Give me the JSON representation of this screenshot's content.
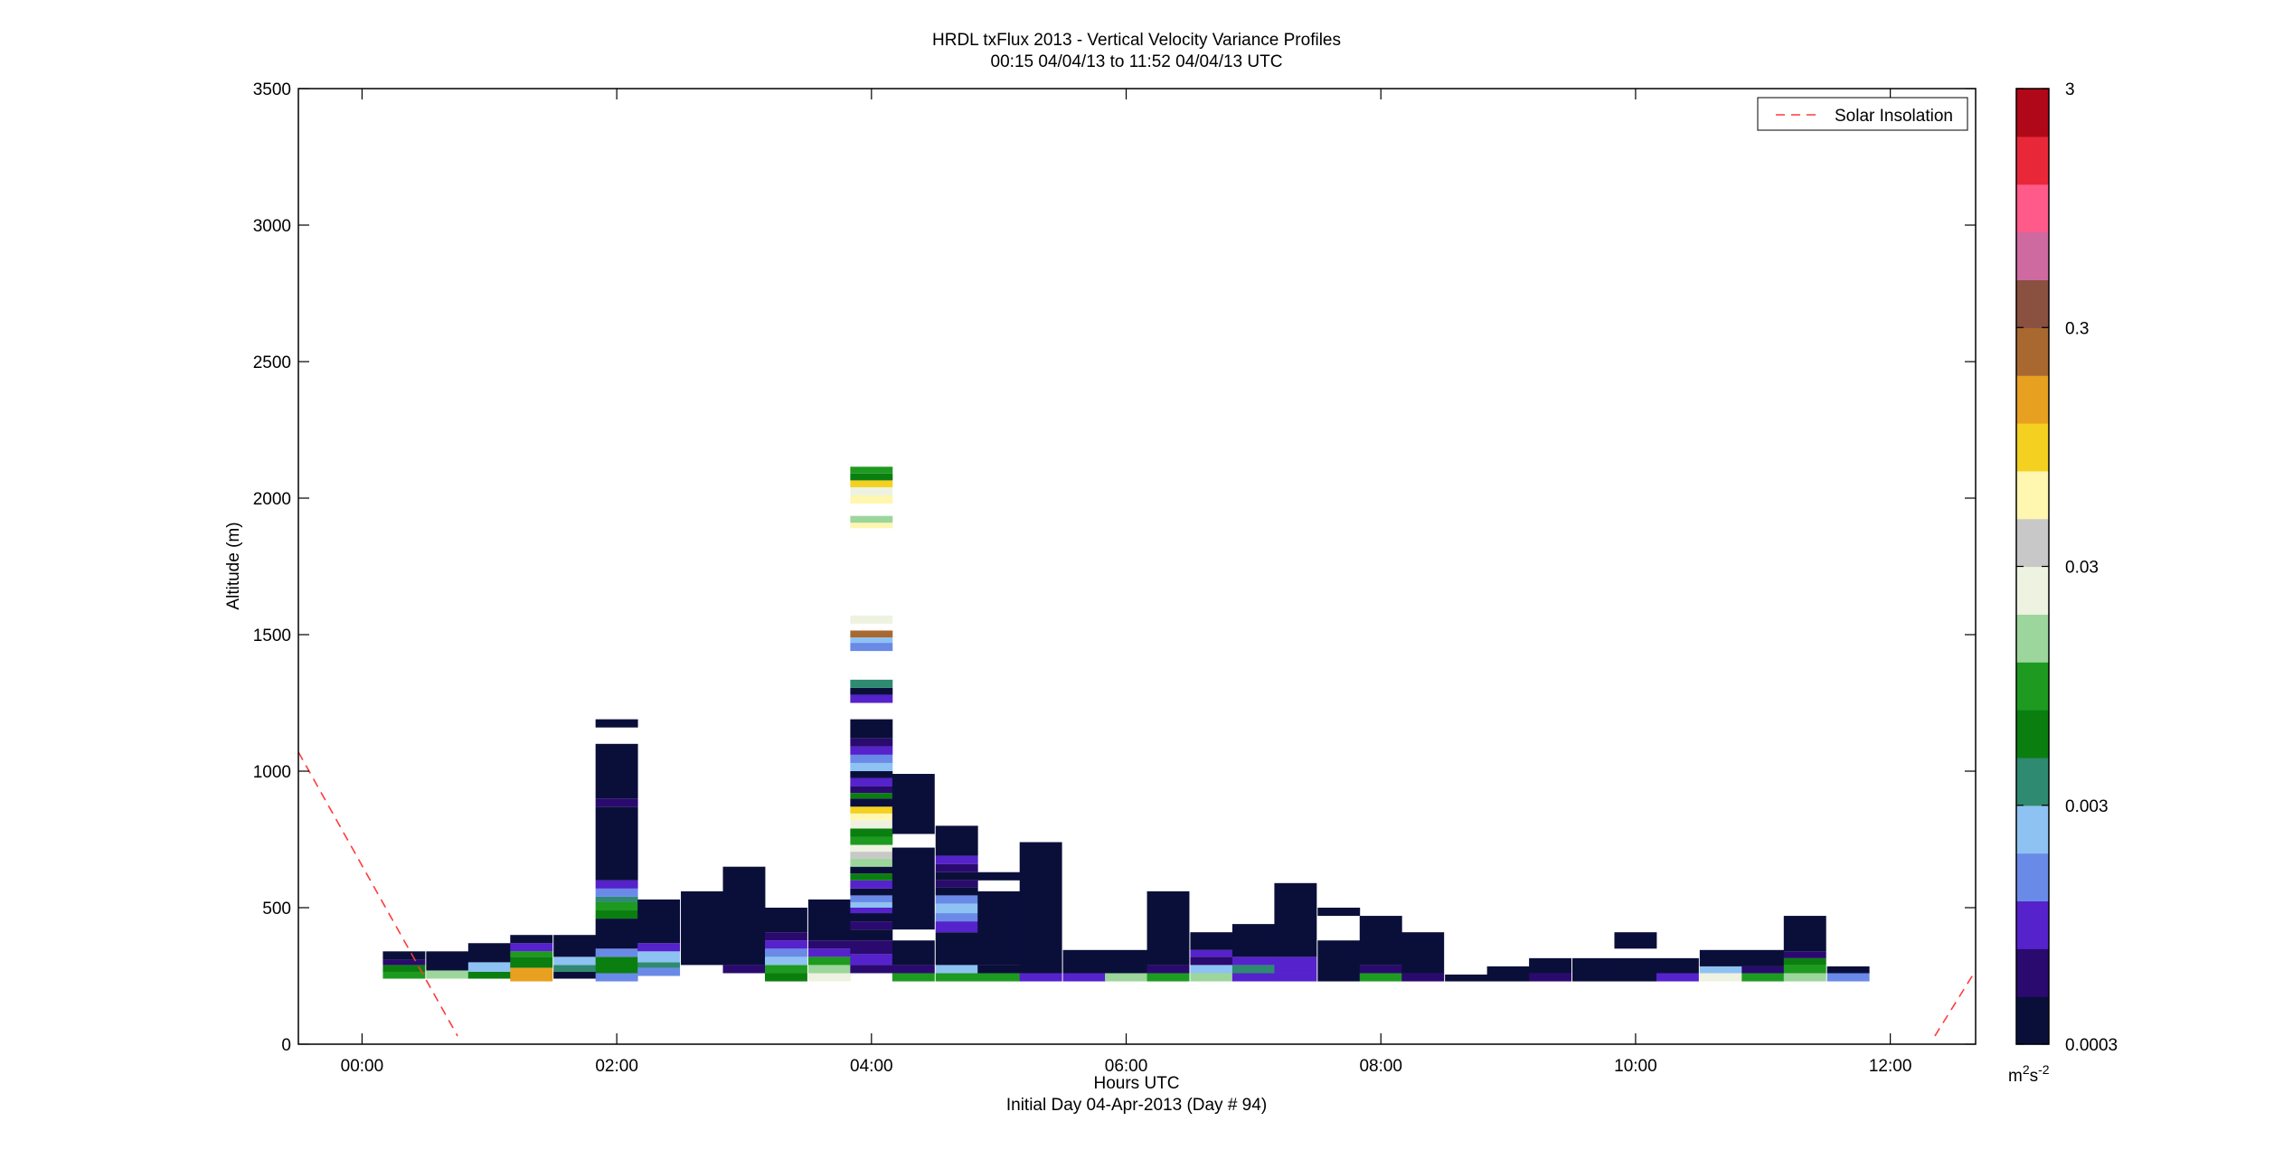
{
  "chart_data": {
    "type": "heatmap",
    "title": "HRDL txFlux 2013 - Vertical Velocity Variance Profiles",
    "subtitle": "00:15 04/04/13 to 11:52 04/04/13  UTC",
    "xlabel": "Hours UTC",
    "xlabel2": "Initial Day 04-Apr-2013 (Day # 94)",
    "ylabel": "Altitude (m)",
    "colorbar_unit_base": "m",
    "colorbar_unit_exp1": "2",
    "colorbar_unit_mid": "s",
    "colorbar_unit_exp2": "-2",
    "legend_label": "Solar Insolation",
    "legend_position": "top-right",
    "xlim": [
      -0.5,
      12.67
    ],
    "ylim": [
      0,
      3500
    ],
    "x_ticks": [
      0,
      2,
      4,
      6,
      8,
      10,
      12
    ],
    "x_tick_labels": [
      "00:00",
      "02:00",
      "04:00",
      "06:00",
      "08:00",
      "10:00",
      "12:00"
    ],
    "y_ticks": [
      0,
      500,
      1000,
      1500,
      2000,
      2500,
      3000,
      3500
    ],
    "y_tick_labels": [
      "0",
      "500",
      "1000",
      "1500",
      "2000",
      "2500",
      "3000",
      "3500"
    ],
    "colorbar_scale": "log",
    "colorbar_range": [
      0.0003,
      3
    ],
    "colorbar_ticks": [
      0.0003,
      0.003,
      0.03,
      0.3,
      3
    ],
    "colorbar_tick_labels": [
      "0.0003",
      "0.003",
      "0.03",
      "0.3",
      "3"
    ],
    "colorbar_colors": [
      "#0a0f3a",
      "#2a0a6e",
      "#5522cc",
      "#6a8ae8",
      "#8ec2f2",
      "#2e8a70",
      "#0b7e10",
      "#1e9a20",
      "#9cd69c",
      "#eef2e0",
      "#c8c8c8",
      "#fff6b0",
      "#f4d020",
      "#e8a020",
      "#a86830",
      "#8a5040",
      "#ce6aa0",
      "#ff5a8a",
      "#e82838",
      "#b00818"
    ],
    "bin_width_hours": 0.333,
    "gate_height_m": 31,
    "columns": [
      {
        "t": 0.33,
        "top": 340,
        "segs": [
          [
            240,
            265,
            "#1e9a20"
          ],
          [
            265,
            290,
            "#0b7e10"
          ],
          [
            290,
            310,
            "#2a0a6e"
          ],
          [
            310,
            340,
            "#0a0f3a"
          ]
        ]
      },
      {
        "t": 0.67,
        "top": 340,
        "segs": [
          [
            240,
            270,
            "#9cd69c"
          ],
          [
            270,
            340,
            "#0a0f3a"
          ]
        ]
      },
      {
        "t": 1.0,
        "top": 370,
        "segs": [
          [
            240,
            265,
            "#0b7e10"
          ],
          [
            265,
            300,
            "#8ec2f2"
          ],
          [
            300,
            370,
            "#0a0f3a"
          ]
        ]
      },
      {
        "t": 1.33,
        "top": 400,
        "segs": [
          [
            230,
            280,
            "#e8a020"
          ],
          [
            280,
            320,
            "#0b7e10"
          ],
          [
            320,
            340,
            "#1e9a20"
          ],
          [
            340,
            370,
            "#5522cc"
          ],
          [
            370,
            400,
            "#0a0f3a"
          ]
        ]
      },
      {
        "t": 1.67,
        "top": 400,
        "segs": [
          [
            240,
            265,
            "#0a0f3a"
          ],
          [
            265,
            290,
            "#2e8a70"
          ],
          [
            290,
            320,
            "#8ec2f2"
          ],
          [
            320,
            400,
            "#0a0f3a"
          ]
        ]
      },
      {
        "t": 2.0,
        "top": 1100,
        "segs": [
          [
            230,
            260,
            "#6a8ae8"
          ],
          [
            260,
            320,
            "#0b7e10"
          ],
          [
            320,
            350,
            "#6a8ae8"
          ],
          [
            350,
            460,
            "#0a0f3a"
          ],
          [
            460,
            490,
            "#0b7e10"
          ],
          [
            490,
            520,
            "#1e9a20"
          ],
          [
            520,
            540,
            "#2e8a70"
          ],
          [
            540,
            570,
            "#6a8ae8"
          ],
          [
            570,
            600,
            "#5522cc"
          ],
          [
            600,
            870,
            "#0a0f3a"
          ],
          [
            870,
            900,
            "#2a0a6e"
          ],
          [
            900,
            1100,
            "#0a0f3a"
          ],
          [
            1160,
            1190,
            "#0a0f3a"
          ]
        ]
      },
      {
        "t": 2.33,
        "top": 530,
        "segs": [
          [
            250,
            280,
            "#6a8ae8"
          ],
          [
            280,
            300,
            "#2e8a70"
          ],
          [
            300,
            340,
            "#8ec2f2"
          ],
          [
            340,
            370,
            "#5522cc"
          ],
          [
            370,
            530,
            "#0a0f3a"
          ]
        ]
      },
      {
        "t": 2.67,
        "top": 560,
        "segs": [
          [
            290,
            560,
            "#0a0f3a"
          ]
        ]
      },
      {
        "t": 3.0,
        "top": 650,
        "segs": [
          [
            260,
            290,
            "#2a0a6e"
          ],
          [
            290,
            650,
            "#0a0f3a"
          ]
        ]
      },
      {
        "t": 3.33,
        "top": 500,
        "segs": [
          [
            230,
            260,
            "#0b7e10"
          ],
          [
            260,
            290,
            "#1e9a20"
          ],
          [
            290,
            320,
            "#8ec2f2"
          ],
          [
            320,
            350,
            "#6a8ae8"
          ],
          [
            350,
            380,
            "#5522cc"
          ],
          [
            380,
            410,
            "#2a0a6e"
          ],
          [
            410,
            500,
            "#0a0f3a"
          ]
        ]
      },
      {
        "t": 3.67,
        "top": 530,
        "segs": [
          [
            230,
            260,
            "#eef2e0"
          ],
          [
            260,
            290,
            "#9cd69c"
          ],
          [
            290,
            320,
            "#1e9a20"
          ],
          [
            320,
            350,
            "#5522cc"
          ],
          [
            350,
            380,
            "#2a0a6e"
          ],
          [
            380,
            530,
            "#0a0f3a"
          ]
        ]
      },
      {
        "t": 4.0,
        "top": 1190,
        "segs": [
          [
            260,
            290,
            "#2a0a6e"
          ],
          [
            290,
            330,
            "#5522cc"
          ],
          [
            330,
            380,
            "#2a0a6e"
          ],
          [
            380,
            420,
            "#0a0f3a"
          ],
          [
            420,
            450,
            "#2a0a6e"
          ],
          [
            450,
            480,
            "#0a0f3a"
          ],
          [
            480,
            500,
            "#5522cc"
          ],
          [
            500,
            520,
            "#8ec2f2"
          ],
          [
            520,
            545,
            "#6a8ae8"
          ],
          [
            545,
            570,
            "#0a0f3a"
          ],
          [
            570,
            600,
            "#5522cc"
          ],
          [
            600,
            625,
            "#0b7e10"
          ],
          [
            625,
            650,
            "#0a0f3a"
          ],
          [
            650,
            680,
            "#9cd69c"
          ],
          [
            680,
            705,
            "#c8c8c8"
          ],
          [
            705,
            730,
            "#eef2e0"
          ],
          [
            730,
            760,
            "#1e9a20"
          ],
          [
            760,
            790,
            "#0b7e10"
          ],
          [
            790,
            820,
            "#eef2e0"
          ],
          [
            820,
            845,
            "#fff6b0"
          ],
          [
            845,
            870,
            "#f4d020"
          ],
          [
            870,
            900,
            "#0a0f3a"
          ],
          [
            900,
            920,
            "#0b7e10"
          ],
          [
            920,
            945,
            "#2a0a6e"
          ],
          [
            945,
            975,
            "#5522cc"
          ],
          [
            975,
            1000,
            "#0a0f3a"
          ],
          [
            1000,
            1030,
            "#8ec2f2"
          ],
          [
            1030,
            1060,
            "#6a8ae8"
          ],
          [
            1060,
            1090,
            "#5522cc"
          ],
          [
            1090,
            1120,
            "#2a0a6e"
          ],
          [
            1120,
            1190,
            "#0a0f3a"
          ],
          [
            1250,
            1280,
            "#5522cc"
          ],
          [
            1280,
            1305,
            "#0a0f3a"
          ],
          [
            1305,
            1335,
            "#2e8a70"
          ],
          [
            1440,
            1470,
            "#6a8ae8"
          ],
          [
            1470,
            1490,
            "#8ec2f2"
          ],
          [
            1490,
            1515,
            "#a86830"
          ],
          [
            1540,
            1570,
            "#eef2e0"
          ],
          [
            1890,
            1910,
            "#fff6b0"
          ],
          [
            1910,
            1935,
            "#9cd69c"
          ],
          [
            1980,
            2010,
            "#fff6b0"
          ],
          [
            2010,
            2040,
            "#eef2e0"
          ],
          [
            2040,
            2065,
            "#f4d020"
          ],
          [
            2065,
            2090,
            "#0b7e10"
          ],
          [
            2090,
            2115,
            "#1e9a20"
          ]
        ]
      },
      {
        "t": 4.33,
        "top": 990,
        "segs": [
          [
            230,
            260,
            "#1e9a20"
          ],
          [
            260,
            290,
            "#2a0a6e"
          ],
          [
            290,
            380,
            "#0a0f3a"
          ],
          [
            420,
            720,
            "#0a0f3a"
          ],
          [
            770,
            990,
            "#0a0f3a"
          ]
        ]
      },
      {
        "t": 4.67,
        "top": 800,
        "segs": [
          [
            230,
            260,
            "#1e9a20"
          ],
          [
            260,
            290,
            "#8ec2f2"
          ],
          [
            290,
            410,
            "#0a0f3a"
          ],
          [
            410,
            450,
            "#5522cc"
          ],
          [
            450,
            480,
            "#6a8ae8"
          ],
          [
            480,
            515,
            "#8ec2f2"
          ],
          [
            515,
            545,
            "#6a8ae8"
          ],
          [
            545,
            575,
            "#0a0f3a"
          ],
          [
            575,
            600,
            "#2a0a6e"
          ],
          [
            600,
            630,
            "#0a0f3a"
          ],
          [
            630,
            660,
            "#2a0a6e"
          ],
          [
            660,
            690,
            "#5522cc"
          ],
          [
            690,
            800,
            "#0a0f3a"
          ]
        ]
      },
      {
        "t": 5.0,
        "top": 680,
        "segs": [
          [
            230,
            260,
            "#1e9a20"
          ],
          [
            260,
            290,
            "#0a0f3a"
          ],
          [
            290,
            560,
            "#0a0f3a"
          ],
          [
            600,
            630,
            "#0a0f3a"
          ]
        ]
      },
      {
        "t": 5.33,
        "top": 740,
        "segs": [
          [
            230,
            260,
            "#5522cc"
          ],
          [
            260,
            740,
            "#0a0f3a"
          ]
        ]
      },
      {
        "t": 5.67,
        "top": 345,
        "segs": [
          [
            230,
            260,
            "#5522cc"
          ],
          [
            260,
            345,
            "#0a0f3a"
          ]
        ]
      },
      {
        "t": 6.0,
        "top": 345,
        "segs": [
          [
            230,
            260,
            "#9cd69c"
          ],
          [
            260,
            345,
            "#0a0f3a"
          ]
        ]
      },
      {
        "t": 6.33,
        "top": 560,
        "segs": [
          [
            230,
            260,
            "#1e9a20"
          ],
          [
            260,
            290,
            "#2a0a6e"
          ],
          [
            290,
            560,
            "#0a0f3a"
          ]
        ]
      },
      {
        "t": 6.67,
        "top": 410,
        "segs": [
          [
            230,
            260,
            "#9cd69c"
          ],
          [
            260,
            290,
            "#8ec2f2"
          ],
          [
            290,
            320,
            "#2a0a6e"
          ],
          [
            320,
            345,
            "#5522cc"
          ],
          [
            345,
            410,
            "#0a0f3a"
          ]
        ]
      },
      {
        "t": 7.0,
        "top": 440,
        "segs": [
          [
            230,
            260,
            "#5522cc"
          ],
          [
            260,
            290,
            "#2e8a70"
          ],
          [
            290,
            320,
            "#5522cc"
          ],
          [
            320,
            440,
            "#0a0f3a"
          ]
        ]
      },
      {
        "t": 7.33,
        "top": 590,
        "segs": [
          [
            230,
            260,
            "#5522cc"
          ],
          [
            260,
            320,
            "#5522cc"
          ],
          [
            320,
            590,
            "#0a0f3a"
          ]
        ]
      },
      {
        "t": 7.67,
        "top": 500,
        "segs": [
          [
            230,
            380,
            "#0a0f3a"
          ],
          [
            470,
            500,
            "#0a0f3a"
          ]
        ]
      },
      {
        "t": 8.0,
        "top": 470,
        "segs": [
          [
            230,
            260,
            "#1e9a20"
          ],
          [
            260,
            290,
            "#2a0a6e"
          ],
          [
            290,
            470,
            "#0a0f3a"
          ]
        ]
      },
      {
        "t": 8.33,
        "top": 410,
        "segs": [
          [
            230,
            260,
            "#2a0a6e"
          ],
          [
            260,
            410,
            "#0a0f3a"
          ]
        ]
      },
      {
        "t": 8.67,
        "top": 255,
        "segs": [
          [
            230,
            255,
            "#0a0f3a"
          ]
        ]
      },
      {
        "t": 9.0,
        "top": 285,
        "segs": [
          [
            230,
            285,
            "#0a0f3a"
          ]
        ]
      },
      {
        "t": 9.33,
        "top": 315,
        "segs": [
          [
            230,
            260,
            "#2a0a6e"
          ],
          [
            260,
            315,
            "#0a0f3a"
          ]
        ]
      },
      {
        "t": 9.67,
        "top": 315,
        "segs": [
          [
            230,
            315,
            "#0a0f3a"
          ]
        ]
      },
      {
        "t": 10.0,
        "top": 410,
        "segs": [
          [
            230,
            315,
            "#0a0f3a"
          ],
          [
            350,
            410,
            "#0a0f3a"
          ]
        ]
      },
      {
        "t": 10.33,
        "top": 315,
        "segs": [
          [
            230,
            260,
            "#5522cc"
          ],
          [
            260,
            315,
            "#0a0f3a"
          ]
        ]
      },
      {
        "t": 10.67,
        "top": 345,
        "segs": [
          [
            230,
            260,
            "#eef2e0"
          ],
          [
            260,
            285,
            "#8ec2f2"
          ],
          [
            285,
            345,
            "#0a0f3a"
          ]
        ]
      },
      {
        "t": 11.0,
        "top": 345,
        "segs": [
          [
            230,
            260,
            "#1e9a20"
          ],
          [
            260,
            285,
            "#2a0a6e"
          ],
          [
            285,
            345,
            "#0a0f3a"
          ]
        ]
      },
      {
        "t": 11.33,
        "top": 470,
        "segs": [
          [
            230,
            260,
            "#9cd69c"
          ],
          [
            260,
            290,
            "#1e9a20"
          ],
          [
            290,
            315,
            "#0b7e10"
          ],
          [
            315,
            340,
            "#2a0a6e"
          ],
          [
            340,
            470,
            "#0a0f3a"
          ]
        ]
      },
      {
        "t": 11.67,
        "top": 285,
        "segs": [
          [
            230,
            260,
            "#6a8ae8"
          ],
          [
            260,
            285,
            "#0a0f3a"
          ]
        ]
      }
    ],
    "solar_insolation_lines": [
      {
        "x": [
          -0.5,
          0.75
        ],
        "y": [
          1070,
          30
        ]
      },
      {
        "x": [
          12.35,
          12.67
        ],
        "y": [
          30,
          270
        ]
      }
    ]
  }
}
